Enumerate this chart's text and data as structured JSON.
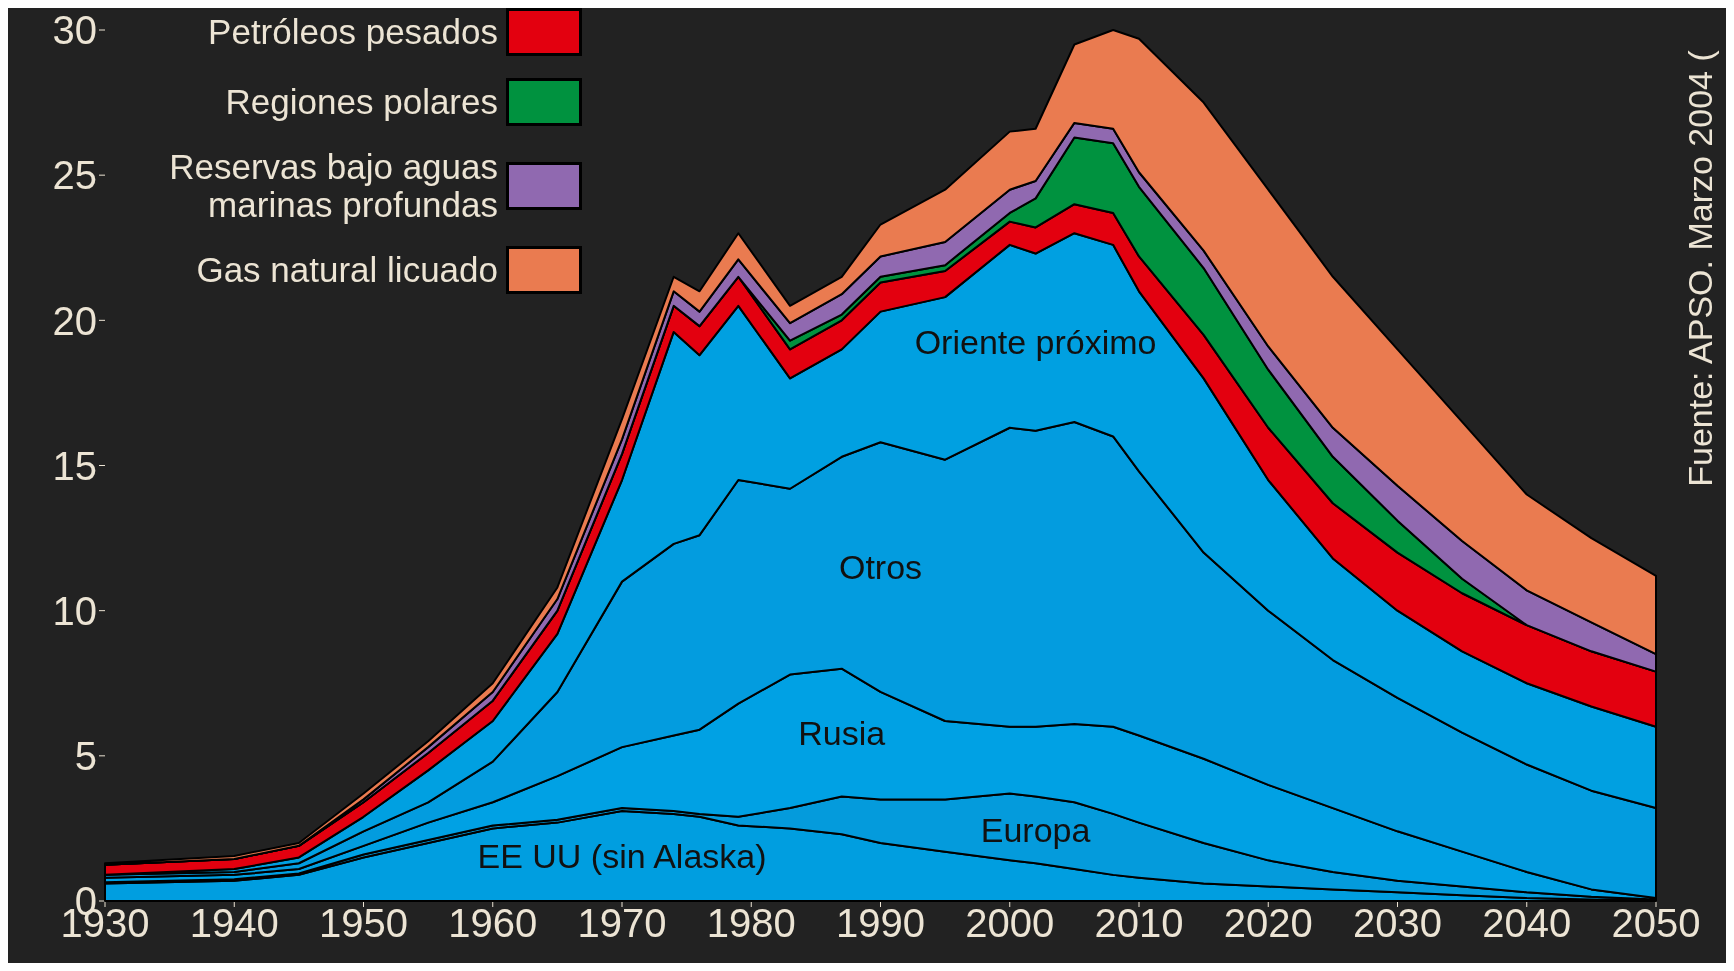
{
  "chart_data": {
    "type": "area",
    "stacked": true,
    "x": [
      1930,
      1940,
      1945,
      1950,
      1955,
      1960,
      1965,
      1970,
      1974,
      1976,
      1979,
      1983,
      1987,
      1990,
      1995,
      2000,
      2002,
      2005,
      2008,
      2010,
      2015,
      2020,
      2025,
      2030,
      2035,
      2040,
      2045,
      2050
    ],
    "series": [
      {
        "name": "EE UU (sin Alaska)",
        "color": "#009ee0",
        "values": [
          0.6,
          0.7,
          0.9,
          1.5,
          2.0,
          2.5,
          2.7,
          3.1,
          3.0,
          2.9,
          2.6,
          2.5,
          2.3,
          2.0,
          1.7,
          1.4,
          1.3,
          1.1,
          0.9,
          0.8,
          0.6,
          0.5,
          0.4,
          0.3,
          0.2,
          0.1,
          0.05,
          0.02
        ]
      },
      {
        "name": "Europa",
        "color": "#049bdc",
        "values": [
          0.05,
          0.05,
          0.05,
          0.1,
          0.1,
          0.1,
          0.1,
          0.1,
          0.1,
          0.1,
          0.3,
          0.7,
          1.3,
          1.5,
          1.8,
          2.3,
          2.3,
          2.3,
          2.1,
          1.9,
          1.4,
          0.9,
          0.6,
          0.4,
          0.3,
          0.2,
          0.1,
          0.03
        ]
      },
      {
        "name": "Rusia",
        "color": "#00a1e4",
        "values": [
          0.15,
          0.15,
          0.15,
          0.3,
          0.6,
          0.8,
          1.5,
          2.1,
          2.6,
          2.9,
          3.9,
          4.6,
          4.4,
          3.7,
          2.7,
          2.3,
          2.4,
          2.7,
          3.0,
          3.0,
          2.9,
          2.6,
          2.2,
          1.7,
          1.2,
          0.7,
          0.25,
          0.05
        ]
      },
      {
        "name": "Otros",
        "color": "#039cdf",
        "values": [
          0.1,
          0.1,
          0.2,
          0.5,
          0.7,
          1.4,
          2.9,
          5.7,
          6.6,
          6.7,
          7.7,
          6.4,
          7.3,
          8.6,
          9.0,
          10.3,
          10.2,
          10.4,
          10.0,
          9.1,
          7.1,
          6.0,
          5.1,
          4.6,
          4.1,
          3.7,
          3.4,
          3.1
        ]
      },
      {
        "name": "Oriente próximo",
        "color": "#00a0e1",
        "values": [
          0,
          0.1,
          0.2,
          0.5,
          1.1,
          1.4,
          2.0,
          3.5,
          7.3,
          6.2,
          6.0,
          3.8,
          3.7,
          4.5,
          5.6,
          6.3,
          6.1,
          6.5,
          6.6,
          6.2,
          6.0,
          4.5,
          3.5,
          3.0,
          2.8,
          2.8,
          2.9,
          2.8
        ]
      },
      {
        "name": "Petróleos pesados",
        "color": "#e3000f",
        "values": [
          0.35,
          0.35,
          0.4,
          0.5,
          0.6,
          0.7,
          0.8,
          0.9,
          0.9,
          1.0,
          1.0,
          1.0,
          1.0,
          1.0,
          0.9,
          0.8,
          0.9,
          1.0,
          1.1,
          1.2,
          1.5,
          1.8,
          1.9,
          2.0,
          2.0,
          2.0,
          1.9,
          1.9
        ]
      },
      {
        "name": "Regiones polares",
        "color": "#00923f",
        "values": [
          0,
          0,
          0,
          0,
          0,
          0,
          0,
          0,
          0,
          0,
          0,
          0.3,
          0.2,
          0.2,
          0.2,
          0.3,
          1.0,
          2.3,
          2.4,
          2.4,
          2.3,
          2.0,
          1.6,
          1.1,
          0.5,
          0,
          0,
          0
        ]
      },
      {
        "name": "Reservas bajo aguas marinas profundas",
        "color": "#9069b0",
        "values": [
          0,
          0,
          0,
          0.1,
          0.2,
          0.3,
          0.4,
          0.5,
          0.5,
          0.5,
          0.6,
          0.6,
          0.7,
          0.7,
          0.8,
          0.8,
          0.6,
          0.5,
          0.5,
          0.5,
          0.6,
          0.8,
          1.0,
          1.2,
          1.3,
          1.2,
          1.0,
          0.6
        ]
      },
      {
        "name": "Gas natural licuado",
        "color": "#ea7b50",
        "values": [
          0.05,
          0.1,
          0.1,
          0.2,
          0.2,
          0.3,
          0.4,
          0.7,
          0.5,
          0.7,
          0.9,
          0.6,
          0.6,
          1.1,
          1.8,
          2.0,
          1.8,
          2.7,
          3.4,
          4.6,
          5.1,
          5.4,
          5.2,
          4.7,
          4.1,
          3.3,
          2.9,
          2.7
        ]
      }
    ],
    "xlim": [
      1930,
      2050
    ],
    "xticks": [
      1930,
      1940,
      1950,
      1960,
      1970,
      1980,
      1990,
      2000,
      2010,
      2020,
      2030,
      2040,
      2050
    ],
    "ylim": [
      0,
      30
    ],
    "yticks": [
      0,
      5,
      10,
      15,
      20,
      25,
      30
    ],
    "grid": false,
    "legend": "top left",
    "annotations": [
      "Fuente: APSO. Marzo 2004 ("
    ]
  }
}
